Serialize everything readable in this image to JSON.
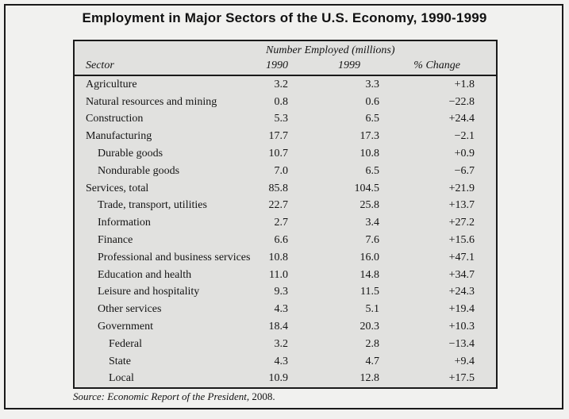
{
  "page": {
    "title": "Employment in Major Sectors of the U.S. Economy, 1990-1999",
    "source_italic": "Source: Economic Report of the President,",
    "source_year": " 2008."
  },
  "table": {
    "group_header": "Number Employed (millions)",
    "columns": [
      "Sector",
      "1990",
      "1999",
      "% Change"
    ],
    "rows": [
      {
        "sector": "Agriculture",
        "indent": 0,
        "y1990": "3.2",
        "y1999": "3.3",
        "change": "+1.8"
      },
      {
        "sector": "Natural resources and mining",
        "indent": 0,
        "y1990": "0.8",
        "y1999": "0.6",
        "change": "−22.8"
      },
      {
        "sector": "Construction",
        "indent": 0,
        "y1990": "5.3",
        "y1999": "6.5",
        "change": "+24.4"
      },
      {
        "sector": "Manufacturing",
        "indent": 0,
        "y1990": "17.7",
        "y1999": "17.3",
        "change": "−2.1"
      },
      {
        "sector": "Durable goods",
        "indent": 1,
        "y1990": "10.7",
        "y1999": "10.8",
        "change": "+0.9"
      },
      {
        "sector": "Nondurable goods",
        "indent": 1,
        "y1990": "7.0",
        "y1999": "6.5",
        "change": "−6.7"
      },
      {
        "sector": "Services, total",
        "indent": 0,
        "y1990": "85.8",
        "y1999": "104.5",
        "change": "+21.9"
      },
      {
        "sector": "Trade, transport, utilities",
        "indent": 1,
        "y1990": "22.7",
        "y1999": "25.8",
        "change": "+13.7"
      },
      {
        "sector": "Information",
        "indent": 1,
        "y1990": "2.7",
        "y1999": "3.4",
        "change": "+27.2"
      },
      {
        "sector": "Finance",
        "indent": 1,
        "y1990": "6.6",
        "y1999": "7.6",
        "change": "+15.6"
      },
      {
        "sector": "Professional and business services",
        "indent": 1,
        "y1990": "10.8",
        "y1999": "16.0",
        "change": "+47.1"
      },
      {
        "sector": "Education and health",
        "indent": 1,
        "y1990": "11.0",
        "y1999": "14.8",
        "change": "+34.7"
      },
      {
        "sector": "Leisure and hospitality",
        "indent": 1,
        "y1990": "9.3",
        "y1999": "11.5",
        "change": "+24.3"
      },
      {
        "sector": "Other services",
        "indent": 1,
        "y1990": "4.3",
        "y1999": "5.1",
        "change": "+19.4"
      },
      {
        "sector": "Government",
        "indent": 1,
        "y1990": "18.4",
        "y1999": "20.3",
        "change": "+10.3"
      },
      {
        "sector": "Federal",
        "indent": 2,
        "y1990": "3.2",
        "y1999": "2.8",
        "change": "−13.4"
      },
      {
        "sector": "State",
        "indent": 2,
        "y1990": "4.3",
        "y1999": "4.7",
        "change": "+9.4"
      },
      {
        "sector": "Local",
        "indent": 2,
        "y1990": "10.9",
        "y1999": "12.8",
        "change": "+17.5"
      }
    ]
  },
  "colors": {
    "page_background": "#f1f1ef",
    "table_background": "#e1e1df",
    "border": "#1a1a1a",
    "text": "#141414"
  }
}
